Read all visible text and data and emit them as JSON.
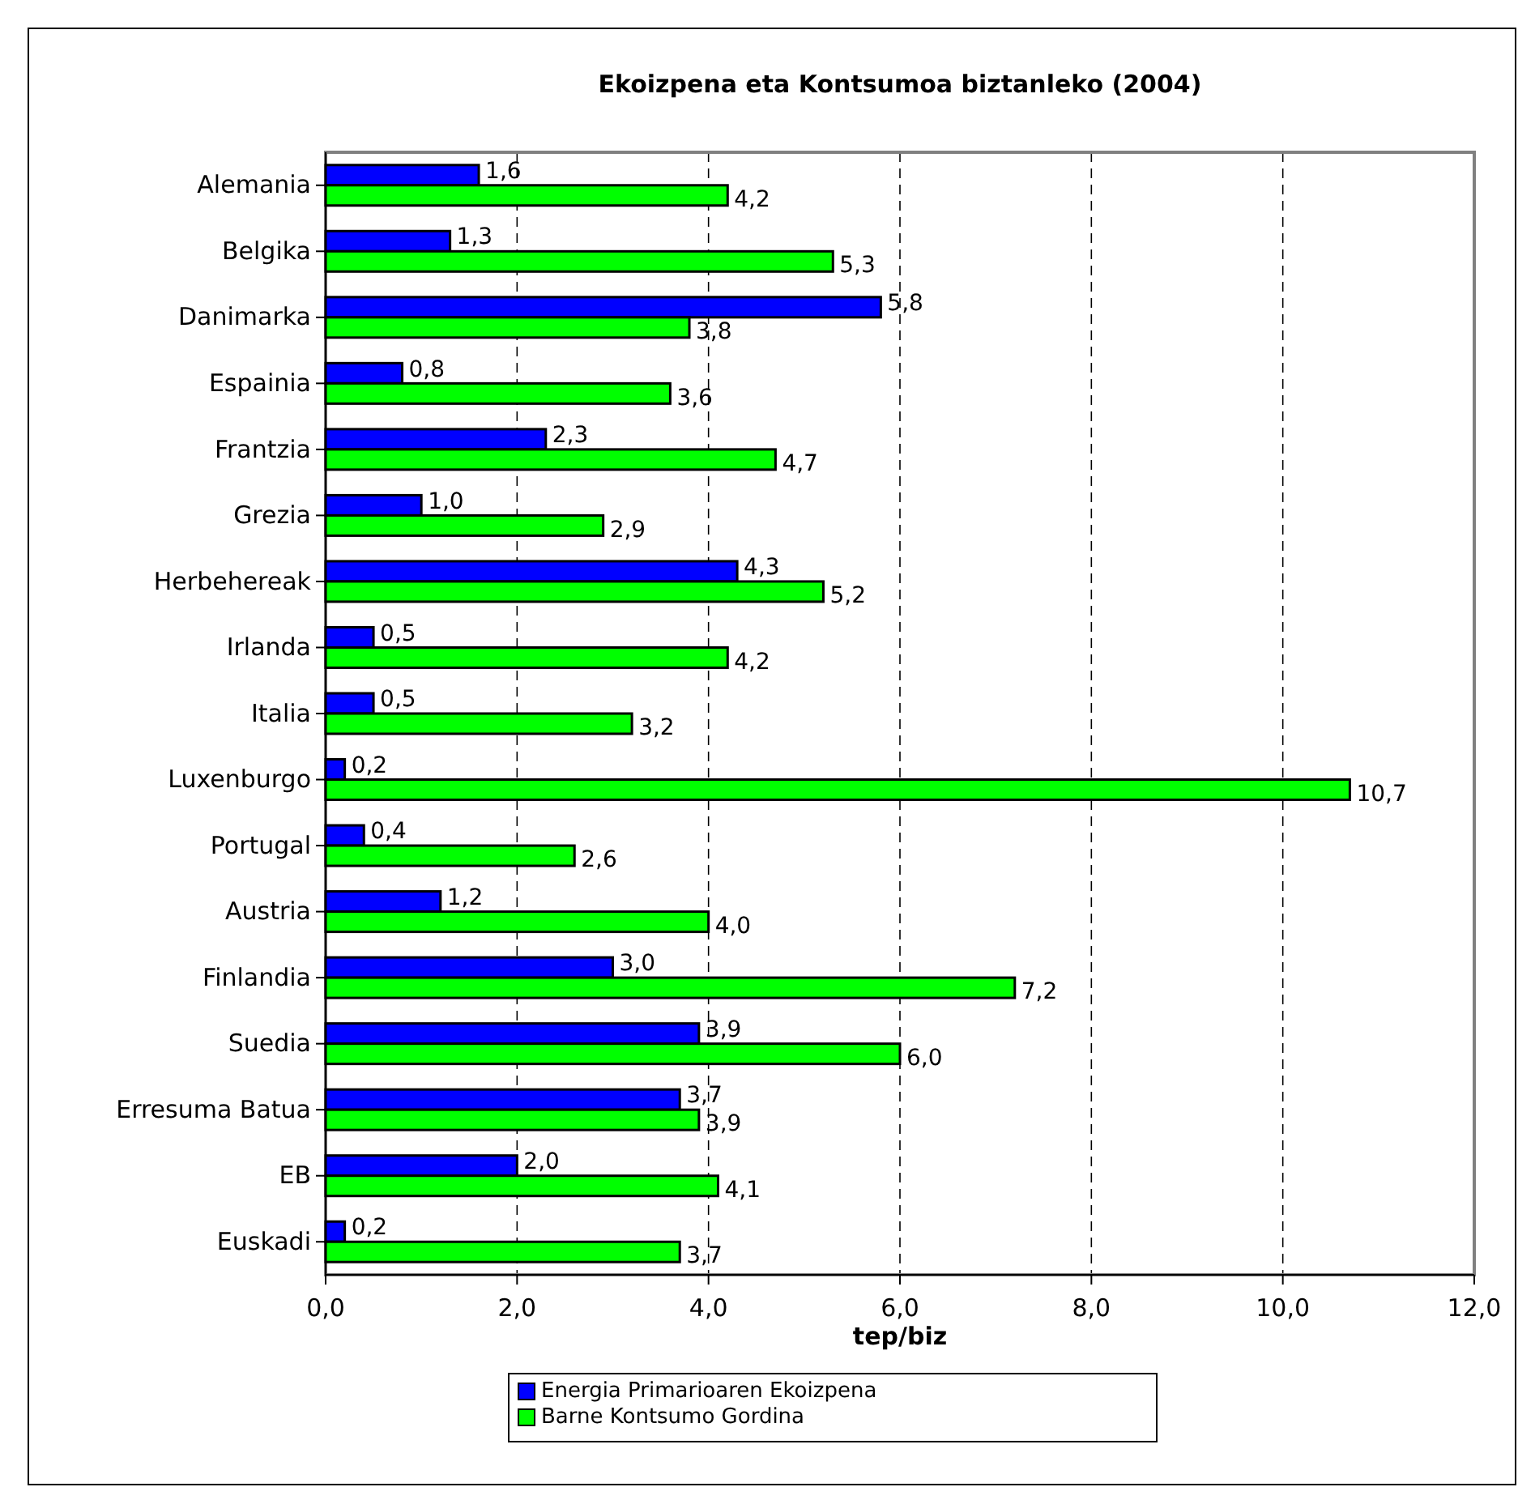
{
  "chart_data": {
    "type": "bar",
    "orientation": "horizontal",
    "title": "Ekoizpena eta Kontsumoa biztanleko (2004)",
    "xlabel": "tep/biz",
    "categories": [
      "Alemania",
      "Belgika",
      "Danimarka",
      "Espainia",
      "Frantzia",
      "Grezia",
      "Herbehereak",
      "Irlanda",
      "Italia",
      "Luxenburgo",
      "Portugal",
      "Austria",
      "Finlandia",
      "Suedia",
      "Erresuma Batua",
      "EB",
      "Euskadi"
    ],
    "series": [
      {
        "name": "Energia Primarioaren Ekoizpena",
        "color": "#0000ff",
        "values": [
          1.6,
          1.3,
          5.8,
          0.8,
          2.3,
          1.0,
          4.3,
          0.5,
          0.5,
          0.2,
          0.4,
          1.2,
          3.0,
          3.9,
          3.7,
          2.0,
          0.2
        ],
        "value_labels": [
          "1,6",
          "1,3",
          "5,8",
          "0,8",
          "2,3",
          "1,0",
          "4,3",
          "0,5",
          "0,5",
          "0,2",
          "0,4",
          "1,2",
          "3,0",
          "3,9",
          "3,7",
          "2,0",
          "0,2"
        ]
      },
      {
        "name": "Barne Kontsumo Gordina",
        "color": "#00ff00",
        "values": [
          4.2,
          5.3,
          3.8,
          3.6,
          4.7,
          2.9,
          5.2,
          4.2,
          3.2,
          10.7,
          2.6,
          4.0,
          7.2,
          6.0,
          3.9,
          4.1,
          3.7
        ],
        "value_labels": [
          "4,2",
          "5,3",
          "3,8",
          "3,6",
          "4,7",
          "2,9",
          "5,2",
          "4,2",
          "3,2",
          "10,7",
          "2,6",
          "4,0",
          "7,2",
          "6,0",
          "3,9",
          "4,1",
          "3,7"
        ]
      }
    ],
    "xlim": [
      0,
      12
    ],
    "xticks": [
      {
        "value": 0,
        "label": "0,0"
      },
      {
        "value": 2,
        "label": "2,0"
      },
      {
        "value": 4,
        "label": "4,0"
      },
      {
        "value": 6,
        "label": "6,0"
      },
      {
        "value": 8,
        "label": "8,0"
      },
      {
        "value": 10,
        "label": "10,0"
      },
      {
        "value": 12,
        "label": "12,0"
      }
    ],
    "grid": "x",
    "legend": "bottom"
  }
}
